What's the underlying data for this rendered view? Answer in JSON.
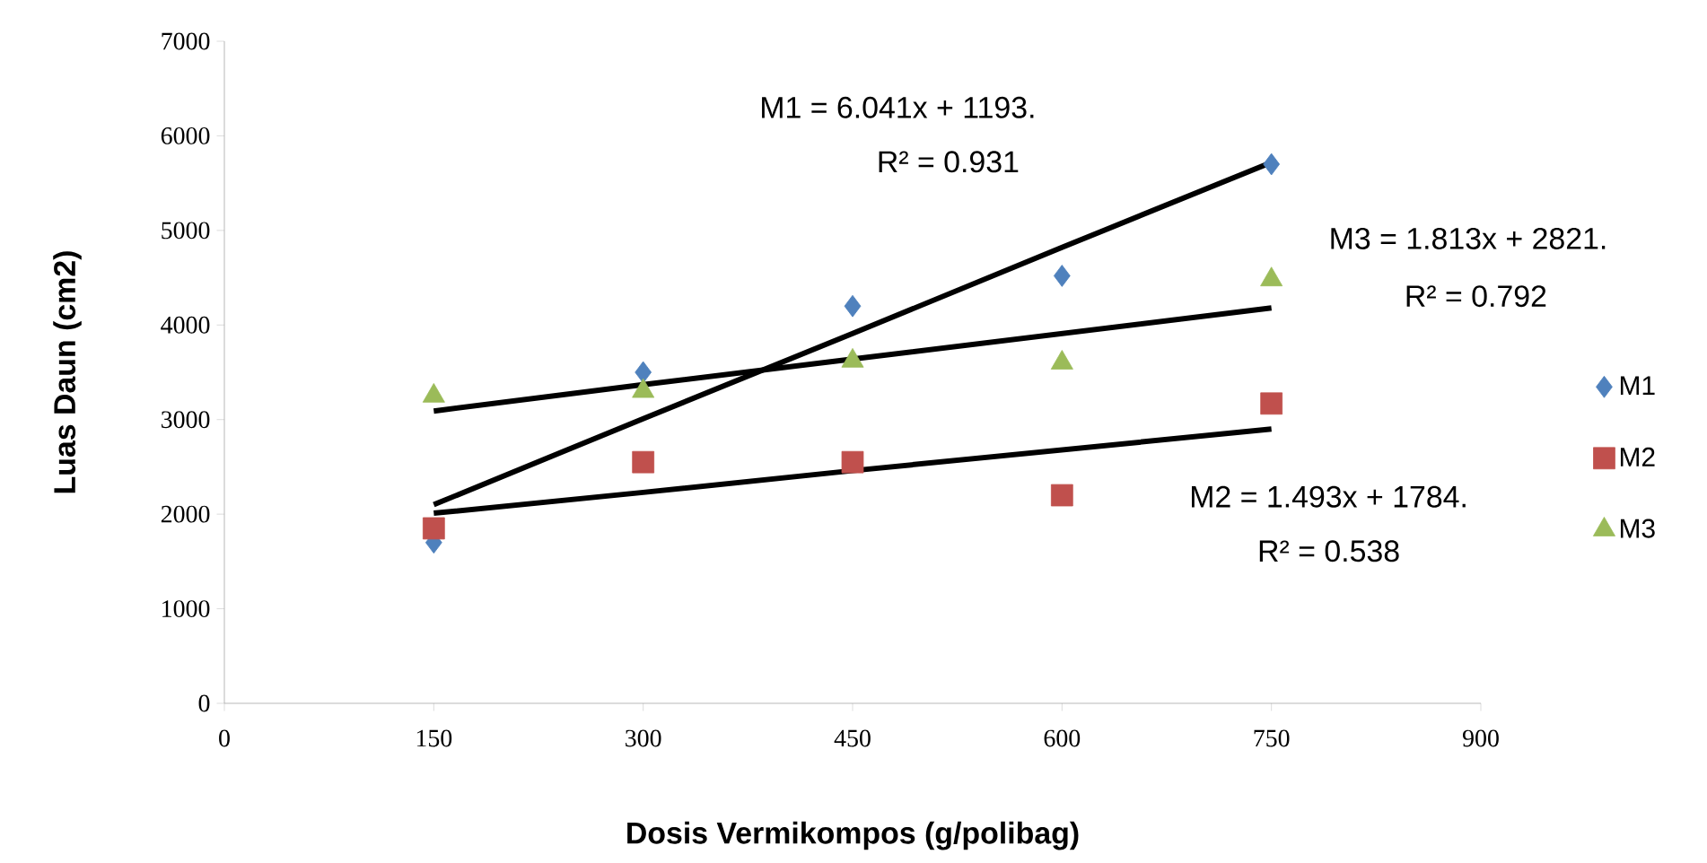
{
  "chart_data": {
    "type": "scatter",
    "xlabel": "Dosis Vermikompos (g/polibag)",
    "ylabel": "Luas Daun (cm2)",
    "xlim": [
      0,
      900
    ],
    "ylim": [
      0,
      7000
    ],
    "xticks": [
      0,
      150,
      300,
      450,
      600,
      750,
      900
    ],
    "yticks": [
      0,
      1000,
      2000,
      3000,
      4000,
      5000,
      6000,
      7000
    ],
    "grid": false,
    "legend": "right",
    "x": [
      150,
      300,
      450,
      600,
      750
    ],
    "series": [
      {
        "name": "M1",
        "color": "#4f81bd",
        "marker": "diamond",
        "values": [
          1700,
          3500,
          4200,
          4520,
          5700
        ]
      },
      {
        "name": "M2",
        "color": "#c0504d",
        "marker": "square",
        "values": [
          1850,
          2550,
          2550,
          2200,
          3170
        ]
      },
      {
        "name": "M3",
        "color": "#9bbb59",
        "marker": "triangle",
        "values": [
          3250,
          3300,
          3620,
          3600,
          4480
        ]
      },
      {
        "type": "line",
        "color": "#000000",
        "marker": "none",
        "values": [
          2100,
          3010,
          3910,
          4820,
          5720
        ]
      },
      {
        "type": "line",
        "color": "#000000",
        "marker": "none",
        "values": [
          2010,
          2230,
          2460,
          2680,
          2900
        ]
      },
      {
        "type": "line",
        "color": "#000000",
        "marker": "none",
        "values": [
          3090,
          3370,
          3640,
          3910,
          4180
        ]
      }
    ],
    "annotations": [
      "M1 = 6.041x + 1193.",
      "R² = 0.931",
      "M3 = 1.813x + 2821.",
      "R² = 0.792",
      "M2 = 1.493x + 1784.",
      "R² = 0.538"
    ]
  }
}
